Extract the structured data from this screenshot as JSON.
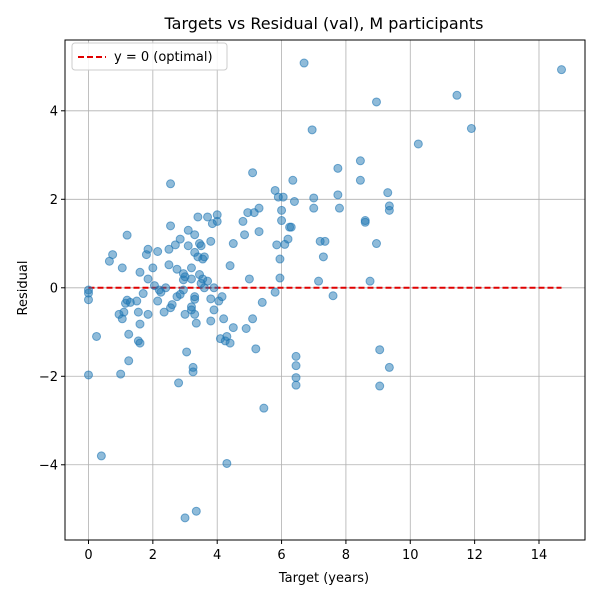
{
  "chart_data": {
    "type": "scatter",
    "title": "Targets vs Residual (val), M participants",
    "xlabel": "Target (years)",
    "ylabel": "Residual",
    "xlim": [
      -0.73,
      15.43
    ],
    "ylim": [
      -5.7,
      5.6
    ],
    "xticks": [
      0,
      2,
      4,
      6,
      8,
      10,
      12,
      14
    ],
    "yticks": [
      -4,
      -2,
      0,
      2,
      4
    ],
    "grid": true,
    "legend_position": "top-left",
    "colors": {
      "points": "#1f77b4",
      "reference_line": "#e00000",
      "grid": "#b0b0b0"
    },
    "reference_line": {
      "label": "y = 0 (optimal)",
      "y": 0,
      "x_start": 0,
      "x_end": 14.7,
      "style": "dashed"
    },
    "series": [
      {
        "points": [
          [
            0.0,
            -0.05
          ],
          [
            0.0,
            -0.12
          ],
          [
            0.0,
            -0.27
          ],
          [
            0.0,
            -1.97
          ],
          [
            0.25,
            -1.1
          ],
          [
            0.4,
            -3.8
          ],
          [
            0.65,
            0.6
          ],
          [
            0.75,
            0.75
          ],
          [
            0.95,
            -0.6
          ],
          [
            1.0,
            -1.95
          ],
          [
            1.05,
            -0.7
          ],
          [
            1.05,
            0.45
          ],
          [
            1.1,
            -0.55
          ],
          [
            1.15,
            -0.35
          ],
          [
            1.2,
            -0.28
          ],
          [
            1.2,
            1.19
          ],
          [
            1.25,
            -1.05
          ],
          [
            1.25,
            -1.65
          ],
          [
            1.3,
            -0.33
          ],
          [
            1.5,
            -0.3
          ],
          [
            1.55,
            -0.55
          ],
          [
            1.55,
            -1.2
          ],
          [
            1.6,
            -0.82
          ],
          [
            1.6,
            -1.25
          ],
          [
            1.6,
            0.35
          ],
          [
            1.7,
            -0.13
          ],
          [
            1.8,
            0.75
          ],
          [
            1.85,
            0.87
          ],
          [
            1.85,
            0.2
          ],
          [
            1.85,
            -0.6
          ],
          [
            2.0,
            0.45
          ],
          [
            2.05,
            0.05
          ],
          [
            2.15,
            -0.3
          ],
          [
            2.15,
            0.82
          ],
          [
            2.2,
            -0.05
          ],
          [
            2.25,
            -0.1
          ],
          [
            2.35,
            -0.55
          ],
          [
            2.4,
            0.0
          ],
          [
            2.5,
            0.87
          ],
          [
            2.5,
            0.52
          ],
          [
            2.55,
            2.35
          ],
          [
            2.55,
            1.4
          ],
          [
            2.55,
            -0.45
          ],
          [
            2.6,
            -0.38
          ],
          [
            2.7,
            0.97
          ],
          [
            2.75,
            0.42
          ],
          [
            2.75,
            -0.2
          ],
          [
            2.8,
            -2.15
          ],
          [
            2.85,
            -0.15
          ],
          [
            2.85,
            1.1
          ],
          [
            2.95,
            0.32
          ],
          [
            2.95,
            0.18
          ],
          [
            2.95,
            -0.05
          ],
          [
            3.0,
            0.25
          ],
          [
            3.0,
            -0.6
          ],
          [
            3.05,
            -1.45
          ],
          [
            3.0,
            -5.2
          ],
          [
            3.1,
            1.3
          ],
          [
            3.1,
            0.95
          ],
          [
            3.2,
            0.45
          ],
          [
            3.2,
            0.2
          ],
          [
            3.2,
            -0.43
          ],
          [
            3.2,
            -0.5
          ],
          [
            3.25,
            -1.8
          ],
          [
            3.25,
            -1.9
          ],
          [
            3.3,
            1.2
          ],
          [
            3.3,
            0.8
          ],
          [
            3.3,
            -0.2
          ],
          [
            3.3,
            -0.26
          ],
          [
            3.3,
            -0.6
          ],
          [
            3.35,
            -0.8
          ],
          [
            3.35,
            -5.05
          ],
          [
            3.4,
            1.6
          ],
          [
            3.4,
            0.7
          ],
          [
            3.45,
            1.0
          ],
          [
            3.45,
            0.3
          ],
          [
            3.5,
            0.95
          ],
          [
            3.5,
            0.1
          ],
          [
            3.55,
            0.65
          ],
          [
            3.55,
            0.2
          ],
          [
            3.6,
            0.0
          ],
          [
            3.6,
            0.7
          ],
          [
            3.7,
            1.6
          ],
          [
            3.7,
            0.15
          ],
          [
            3.8,
            1.05
          ],
          [
            3.8,
            -0.75
          ],
          [
            3.8,
            -0.25
          ],
          [
            3.85,
            1.45
          ],
          [
            3.9,
            0.0
          ],
          [
            3.9,
            -0.5
          ],
          [
            4.0,
            1.65
          ],
          [
            4.0,
            1.5
          ],
          [
            4.05,
            -0.3
          ],
          [
            4.1,
            -1.15
          ],
          [
            4.15,
            -0.2
          ],
          [
            4.2,
            -0.7
          ],
          [
            4.25,
            -1.2
          ],
          [
            4.3,
            -3.97
          ],
          [
            4.3,
            -1.1
          ],
          [
            4.4,
            0.5
          ],
          [
            4.4,
            -1.25
          ],
          [
            4.5,
            1.0
          ],
          [
            4.5,
            -0.9
          ],
          [
            4.8,
            1.5
          ],
          [
            4.85,
            1.2
          ],
          [
            4.9,
            -0.92
          ],
          [
            4.95,
            1.7
          ],
          [
            5.0,
            0.2
          ],
          [
            5.1,
            -0.7
          ],
          [
            5.1,
            2.6
          ],
          [
            5.15,
            1.7
          ],
          [
            5.2,
            -1.38
          ],
          [
            5.3,
            1.8
          ],
          [
            5.3,
            1.27
          ],
          [
            5.4,
            -0.33
          ],
          [
            5.45,
            -2.72
          ],
          [
            5.8,
            2.2
          ],
          [
            5.8,
            -0.1
          ],
          [
            5.85,
            0.97
          ],
          [
            5.9,
            2.05
          ],
          [
            5.95,
            0.65
          ],
          [
            5.95,
            0.22
          ],
          [
            6.0,
            1.75
          ],
          [
            6.0,
            1.52
          ],
          [
            6.05,
            2.05
          ],
          [
            6.1,
            0.98
          ],
          [
            6.2,
            1.1
          ],
          [
            6.25,
            1.37
          ],
          [
            6.3,
            1.37
          ],
          [
            6.35,
            2.43
          ],
          [
            6.4,
            1.95
          ],
          [
            6.45,
            -1.55
          ],
          [
            6.45,
            -1.76
          ],
          [
            6.45,
            -2.03
          ],
          [
            6.45,
            -2.2
          ],
          [
            6.7,
            5.08
          ],
          [
            6.95,
            3.57
          ],
          [
            7.0,
            2.03
          ],
          [
            7.0,
            1.8
          ],
          [
            7.15,
            0.15
          ],
          [
            7.2,
            1.05
          ],
          [
            7.35,
            1.05
          ],
          [
            7.3,
            0.7
          ],
          [
            7.6,
            -0.18
          ],
          [
            7.75,
            2.7
          ],
          [
            7.75,
            2.1
          ],
          [
            7.8,
            1.8
          ],
          [
            8.45,
            2.87
          ],
          [
            8.45,
            2.43
          ],
          [
            8.6,
            1.52
          ],
          [
            8.6,
            1.48
          ],
          [
            8.75,
            0.15
          ],
          [
            8.95,
            1.0
          ],
          [
            8.95,
            4.2
          ],
          [
            9.05,
            -1.4
          ],
          [
            9.05,
            -2.22
          ],
          [
            9.3,
            2.15
          ],
          [
            9.35,
            1.85
          ],
          [
            9.35,
            1.75
          ],
          [
            9.35,
            -1.8
          ],
          [
            10.25,
            3.25
          ],
          [
            11.45,
            4.35
          ],
          [
            11.9,
            3.6
          ],
          [
            14.7,
            4.93
          ]
        ]
      }
    ]
  }
}
